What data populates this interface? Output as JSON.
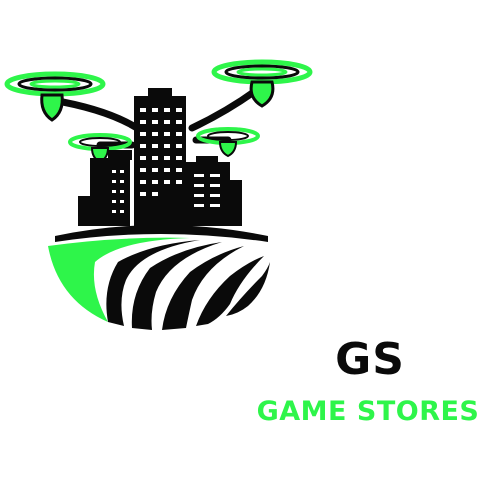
{
  "brand": {
    "name": "GS",
    "tagline": "GAME STORES"
  },
  "colors": {
    "accent": "#2ef54a",
    "ink": "#0a0a0a",
    "background": "#ffffff"
  },
  "icons": [
    "drone-city-field-logo"
  ]
}
